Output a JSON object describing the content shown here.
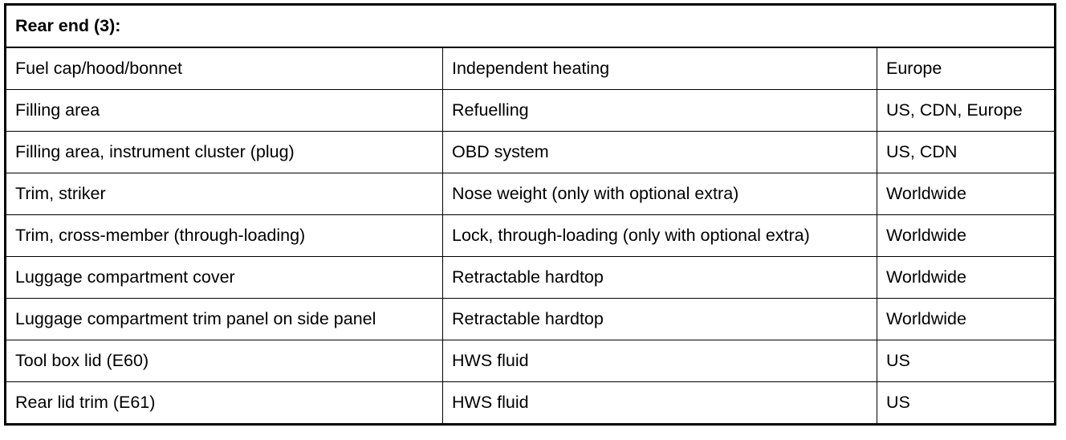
{
  "title": "Rear end (3):",
  "rows": [
    [
      "Fuel cap/hood/bonnet",
      "Independent heating",
      "Europe"
    ],
    [
      "Filling area",
      "Refuelling",
      "US, CDN, Europe"
    ],
    [
      "Filling area, instrument cluster (plug)",
      "OBD system",
      "US, CDN"
    ],
    [
      "Trim, striker",
      "Nose weight (only with optional extra)",
      "Worldwide"
    ],
    [
      "Trim, cross-member (through-loading)",
      "Lock, through-loading (only with optional extra)",
      "Worldwide"
    ],
    [
      "Luggage compartment cover",
      "Retractable hardtop",
      "Worldwide"
    ],
    [
      "Luggage compartment trim panel on side panel",
      "Retractable hardtop",
      "Worldwide"
    ],
    [
      "Tool box lid (E60)",
      "HWS fluid",
      "US"
    ],
    [
      "Rear lid trim (E61)",
      "HWS fluid",
      "US"
    ]
  ]
}
